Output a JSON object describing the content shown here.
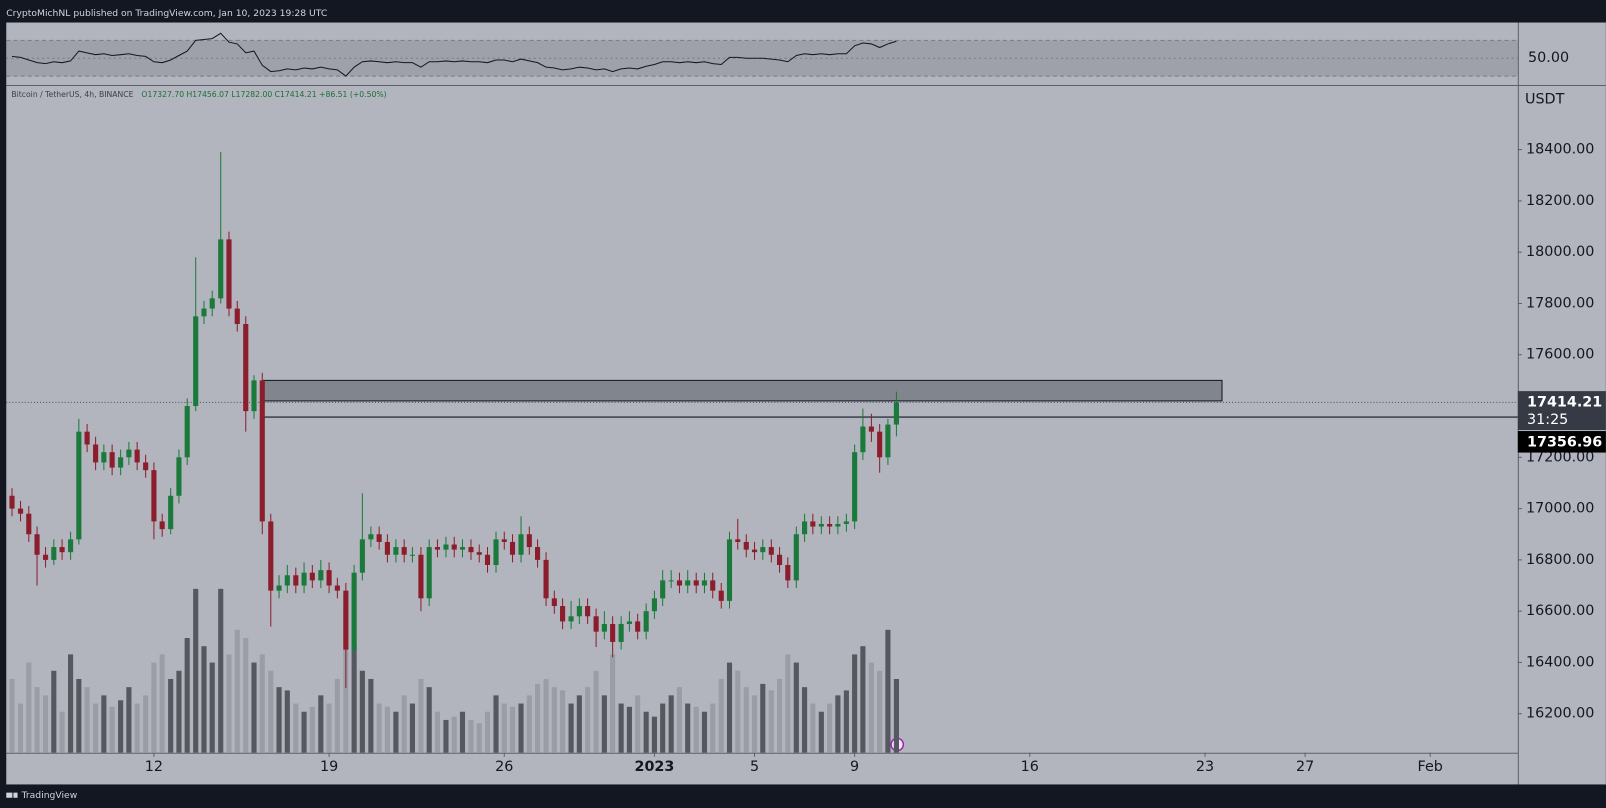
{
  "chart_data": {
    "type": "candlestick",
    "author_line": "CryptoMichNL published on TradingView.com, Jan 10, 2023 19:28 UTC",
    "symbol": "Bitcoin / TetherUS, 4h, BINANCE",
    "ohlc_text": "O17327.70  H17456.07  L17282.00  C17414.21  +86.51 (+0.50%)",
    "currency": "USDT",
    "countdown": "31:25",
    "brand": "TradingView",
    "up_color": "#1b7a3b",
    "down_color": "#8c1d2c",
    "volume_up_color": "#55585f",
    "volume_down_color": "#9a9da5",
    "rsi_color": "#131722",
    "xlim": [
      6.1,
      66.5
    ],
    "ylim": [
      16048,
      18648
    ],
    "xticks": [
      12,
      19,
      26,
      {
        "value": 32,
        "label": "2023"
      },
      {
        "value": 36,
        "label": "5"
      },
      {
        "value": 40,
        "label": "9"
      },
      {
        "value": 47,
        "label": "16"
      },
      {
        "value": 54,
        "label": "23"
      },
      {
        "value": 58,
        "label": "27"
      },
      {
        "value": 63,
        "label": "Feb"
      }
    ],
    "yticks": [
      {
        "value": 16200,
        "label": "16200.00"
      },
      {
        "value": 16400,
        "label": "16400.00"
      },
      {
        "value": 16600,
        "label": "16600.00"
      },
      {
        "value": 16800,
        "label": "16800.00"
      },
      {
        "value": 17000,
        "label": "17000.00"
      },
      {
        "value": 17200,
        "label": "17200.00"
      },
      {
        "value": 17400,
        "label": "17400.00"
      },
      {
        "value": 17600,
        "label": "17600.00"
      },
      {
        "value": 17800,
        "label": "17800.00"
      },
      {
        "value": 18000,
        "label": "18000.00"
      },
      {
        "value": 18200,
        "label": "18200.00"
      },
      {
        "value": 18400,
        "label": "18400.00"
      }
    ],
    "rsi_ylim": [
      20,
      90
    ],
    "rsi_yticks": [
      {
        "value": 50,
        "label": "50.00"
      }
    ],
    "rsi_band": [
      30,
      70
    ],
    "zone": {
      "top": 17500,
      "bottom": 17420,
      "x": [
        16.37,
        54.68
      ]
    },
    "level": 17356.96,
    "x": [
      6.33,
      6.67,
      7,
      7.33,
      7.67,
      8,
      8.33,
      8.67,
      9,
      9.33,
      9.67,
      10,
      10.33,
      10.67,
      11,
      11.33,
      11.67,
      12,
      12.33,
      12.67,
      13,
      13.33,
      13.67,
      14,
      14.33,
      14.67,
      15,
      15.33,
      15.67,
      16,
      16.33,
      16.67,
      17,
      17.33,
      17.67,
      18,
      18.33,
      18.67,
      19,
      19.33,
      19.67,
      20,
      20.33,
      20.67,
      21,
      21.33,
      21.67,
      22,
      22.33,
      22.67,
      23,
      23.33,
      23.67,
      24,
      24.33,
      24.67,
      25,
      25.33,
      25.67,
      26,
      26.33,
      26.67,
      27,
      27.33,
      27.67,
      28,
      28.33,
      28.67,
      29,
      29.33,
      29.67,
      30,
      30.33,
      30.67,
      31,
      31.33,
      31.67,
      32,
      32.33,
      32.67,
      33,
      33.33,
      33.67,
      34,
      34.33,
      34.67,
      35,
      35.33,
      35.67,
      36,
      36.33,
      36.67,
      37,
      37.33,
      37.67,
      38,
      38.33,
      38.67,
      39,
      39.33,
      39.67,
      40,
      40.33,
      40.67,
      41,
      41.33,
      41.67
    ],
    "candles": [
      [
        17050,
        17080,
        16970,
        17000
      ],
      [
        17000,
        17030,
        16950,
        16980
      ],
      [
        16980,
        17010,
        16870,
        16900
      ],
      [
        16900,
        16930,
        16700,
        16820
      ],
      [
        16820,
        16850,
        16770,
        16800
      ],
      [
        16800,
        16880,
        16780,
        16850
      ],
      [
        16850,
        16880,
        16800,
        16830
      ],
      [
        16830,
        16910,
        16800,
        16880
      ],
      [
        16880,
        17350,
        16860,
        17300
      ],
      [
        17300,
        17330,
        17220,
        17250
      ],
      [
        17250,
        17280,
        17150,
        17180
      ],
      [
        17180,
        17250,
        17150,
        17220
      ],
      [
        17220,
        17250,
        17130,
        17160
      ],
      [
        17160,
        17230,
        17130,
        17200
      ],
      [
        17200,
        17260,
        17170,
        17230
      ],
      [
        17230,
        17260,
        17150,
        17180
      ],
      [
        17180,
        17210,
        17120,
        17150
      ],
      [
        17150,
        17180,
        16880,
        16950
      ],
      [
        16950,
        16980,
        16890,
        16920
      ],
      [
        16920,
        17080,
        16900,
        17050
      ],
      [
        17050,
        17230,
        17020,
        17200
      ],
      [
        17200,
        17430,
        17170,
        17400
      ],
      [
        17400,
        17980,
        17380,
        17750
      ],
      [
        17750,
        17810,
        17720,
        17780
      ],
      [
        17780,
        17850,
        17750,
        17820
      ],
      [
        17820,
        18390,
        17800,
        18050
      ],
      [
        18050,
        18080,
        17750,
        17780
      ],
      [
        17780,
        17810,
        17690,
        17720
      ],
      [
        17720,
        17750,
        17300,
        17380
      ],
      [
        17380,
        17520,
        17350,
        17500
      ],
      [
        17500,
        17530,
        16900,
        16950
      ],
      [
        16950,
        16980,
        16540,
        16680
      ],
      [
        16680,
        16740,
        16650,
        16700
      ],
      [
        16700,
        16780,
        16670,
        16740
      ],
      [
        16740,
        16770,
        16670,
        16700
      ],
      [
        16700,
        16790,
        16670,
        16750
      ],
      [
        16750,
        16780,
        16690,
        16720
      ],
      [
        16720,
        16800,
        16690,
        16760
      ],
      [
        16760,
        16790,
        16670,
        16700
      ],
      [
        16700,
        16730,
        16650,
        16680
      ],
      [
        16680,
        16710,
        16300,
        16450
      ],
      [
        16450,
        16780,
        16420,
        16750
      ],
      [
        16750,
        17060,
        16720,
        16880
      ],
      [
        16880,
        16930,
        16850,
        16900
      ],
      [
        16900,
        16930,
        16840,
        16870
      ],
      [
        16870,
        16900,
        16790,
        16820
      ],
      [
        16820,
        16880,
        16790,
        16850
      ],
      [
        16850,
        16880,
        16790,
        16820
      ],
      [
        16820,
        16850,
        16790,
        16820
      ],
      [
        16820,
        16850,
        16600,
        16650
      ],
      [
        16650,
        16880,
        16620,
        16850
      ],
      [
        16850,
        16880,
        16810,
        16840
      ],
      [
        16840,
        16890,
        16810,
        16860
      ],
      [
        16860,
        16890,
        16810,
        16840
      ],
      [
        16840,
        16880,
        16810,
        16850
      ],
      [
        16850,
        16880,
        16800,
        16830
      ],
      [
        16830,
        16860,
        16790,
        16820
      ],
      [
        16820,
        16850,
        16750,
        16780
      ],
      [
        16780,
        16910,
        16750,
        16880
      ],
      [
        16880,
        16910,
        16840,
        16870
      ],
      [
        16870,
        16900,
        16790,
        16820
      ],
      [
        16820,
        16970,
        16790,
        16900
      ],
      [
        16900,
        16930,
        16820,
        16850
      ],
      [
        16850,
        16880,
        16770,
        16800
      ],
      [
        16800,
        16830,
        16620,
        16650
      ],
      [
        16650,
        16680,
        16590,
        16620
      ],
      [
        16620,
        16650,
        16530,
        16560
      ],
      [
        16560,
        16640,
        16530,
        16580
      ],
      [
        16580,
        16650,
        16550,
        16620
      ],
      [
        16620,
        16650,
        16550,
        16580
      ],
      [
        16580,
        16610,
        16460,
        16520
      ],
      [
        16520,
        16600,
        16490,
        16550
      ],
      [
        16550,
        16580,
        16420,
        16480
      ],
      [
        16480,
        16580,
        16450,
        16550
      ],
      [
        16550,
        16600,
        16520,
        16560
      ],
      [
        16560,
        16590,
        16490,
        16520
      ],
      [
        16520,
        16630,
        16490,
        16600
      ],
      [
        16600,
        16680,
        16570,
        16650
      ],
      [
        16650,
        16760,
        16620,
        16720
      ],
      [
        16720,
        16760,
        16690,
        16720
      ],
      [
        16720,
        16750,
        16670,
        16700
      ],
      [
        16700,
        16760,
        16670,
        16720
      ],
      [
        16720,
        16750,
        16670,
        16700
      ],
      [
        16700,
        16750,
        16670,
        16720
      ],
      [
        16720,
        16750,
        16650,
        16680
      ],
      [
        16680,
        16710,
        16610,
        16640
      ],
      [
        16640,
        16910,
        16610,
        16880
      ],
      [
        16880,
        16960,
        16840,
        16870
      ],
      [
        16870,
        16900,
        16810,
        16840
      ],
      [
        16840,
        16870,
        16800,
        16830
      ],
      [
        16830,
        16880,
        16800,
        16850
      ],
      [
        16850,
        16880,
        16790,
        16820
      ],
      [
        16820,
        16850,
        16750,
        16780
      ],
      [
        16780,
        16810,
        16690,
        16720
      ],
      [
        16720,
        16930,
        16690,
        16900
      ],
      [
        16900,
        16980,
        16870,
        16950
      ],
      [
        16950,
        16980,
        16900,
        16930
      ],
      [
        16930,
        16970,
        16900,
        16940
      ],
      [
        16940,
        16970,
        16900,
        16930
      ],
      [
        16930,
        16970,
        16900,
        16940
      ],
      [
        16940,
        16980,
        16910,
        16950
      ],
      [
        16950,
        17250,
        16920,
        17220
      ],
      [
        17220,
        17390,
        17190,
        17320
      ],
      [
        17320,
        17370,
        17260,
        17300
      ],
      [
        17300,
        17330,
        17140,
        17200
      ],
      [
        17200,
        17350,
        17170,
        17327.7
      ],
      [
        17327.7,
        17456.07,
        17282,
        17414.21
      ]
    ],
    "volume": [
      45,
      30,
      55,
      40,
      35,
      50,
      25,
      60,
      45,
      40,
      30,
      35,
      28,
      32,
      40,
      30,
      35,
      55,
      60,
      45,
      50,
      70,
      100,
      65,
      55,
      100,
      60,
      75,
      70,
      55,
      60,
      50,
      40,
      38,
      30,
      25,
      28,
      35,
      30,
      45,
      90,
      65,
      50,
      45,
      30,
      28,
      25,
      35,
      30,
      45,
      40,
      25,
      20,
      22,
      25,
      20,
      18,
      25,
      35,
      30,
      28,
      30,
      35,
      42,
      45,
      40,
      38,
      30,
      35,
      40,
      50,
      35,
      60,
      30,
      28,
      35,
      25,
      22,
      30,
      35,
      40,
      30,
      28,
      25,
      30,
      45,
      55,
      50,
      40,
      35,
      42,
      38,
      45,
      60,
      55,
      40,
      30,
      25,
      30,
      35,
      38,
      60,
      65,
      55,
      50,
      75,
      45
    ],
    "rsi": [
      52,
      51,
      48,
      45,
      44,
      46,
      45,
      47,
      58,
      56,
      54,
      55,
      53,
      54,
      55,
      53,
      52,
      46,
      45,
      48,
      53,
      58,
      70,
      71,
      72,
      78,
      68,
      66,
      56,
      58,
      42,
      35,
      36,
      38,
      37,
      39,
      38,
      40,
      38,
      37,
      30,
      40,
      46,
      47,
      46,
      45,
      46,
      45,
      45,
      40,
      46,
      46,
      47,
      46,
      47,
      46,
      46,
      45,
      48,
      48,
      46,
      49,
      47,
      45,
      40,
      39,
      37,
      38,
      40,
      39,
      37,
      38,
      35,
      38,
      39,
      38,
      41,
      43,
      46,
      46,
      45,
      46,
      45,
      46,
      44,
      43,
      51,
      51,
      50,
      50,
      50,
      49,
      48,
      46,
      53,
      55,
      54,
      55,
      54,
      55,
      55,
      64,
      67,
      66,
      62,
      66,
      69
    ]
  }
}
